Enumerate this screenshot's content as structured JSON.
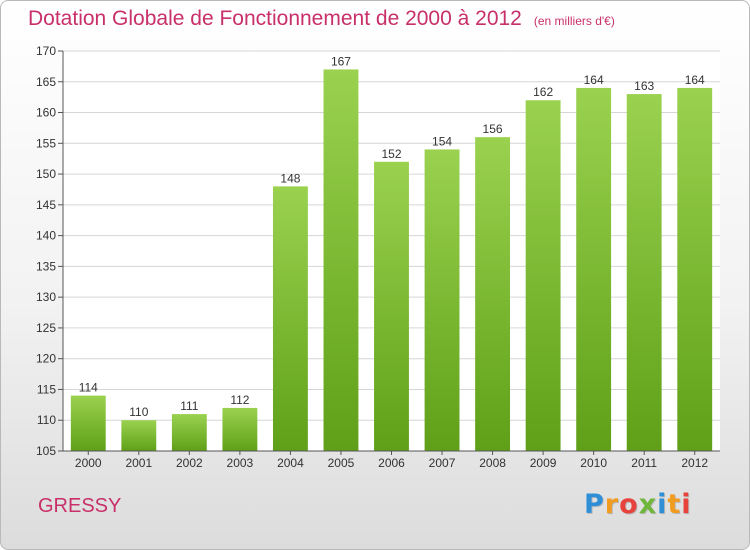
{
  "title": "Dotation Globale de Fonctionnement de 2000 à 2012",
  "unit": "(en milliers d'€)",
  "commune": "GRESSY",
  "logo": {
    "letters": [
      "P",
      "r",
      "o",
      "x",
      "i",
      "t",
      "i"
    ],
    "colors": [
      "#2e8fd6",
      "#f29c1f",
      "#e8423c",
      "#6fb73b",
      "#2e8fd6",
      "#f29c1f",
      "#e8423c"
    ]
  },
  "chart_data": {
    "type": "bar",
    "categories": [
      "2000",
      "2001",
      "2002",
      "2003",
      "2004",
      "2005",
      "2006",
      "2007",
      "2008",
      "2009",
      "2010",
      "2011",
      "2012"
    ],
    "values": [
      114,
      110,
      111,
      112,
      148,
      167,
      152,
      154,
      156,
      162,
      164,
      163,
      164
    ],
    "ylim": [
      105,
      170
    ],
    "yticks": [
      105,
      110,
      115,
      120,
      125,
      130,
      135,
      140,
      145,
      150,
      155,
      160,
      165,
      170
    ],
    "grid": true,
    "bar_color": "#7cc233"
  }
}
